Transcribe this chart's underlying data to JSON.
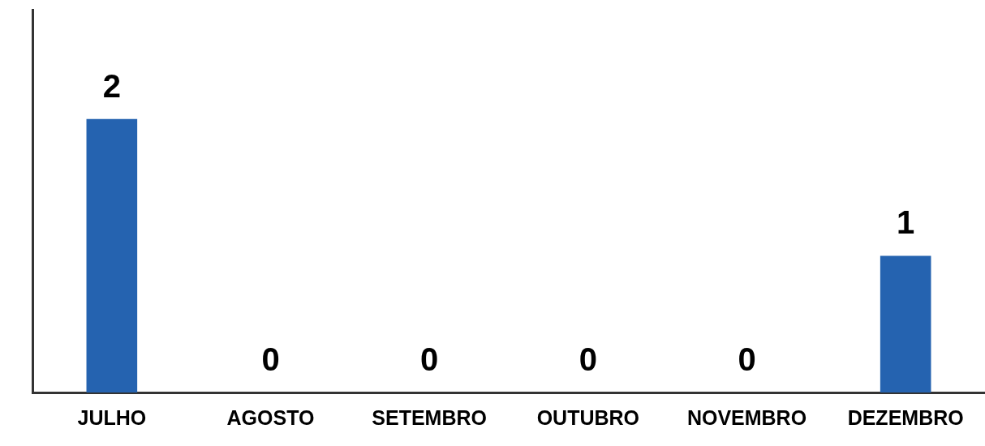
{
  "chart_data": {
    "type": "bar",
    "categories": [
      "JULHO",
      "AGOSTO",
      "SETEMBRO",
      "OUTUBRO",
      "NOVEMBRO",
      "DEZEMBRO"
    ],
    "values": [
      2,
      0,
      0,
      0,
      0,
      1
    ],
    "color": "#2563b0",
    "ylim": [
      0,
      2.8
    ],
    "data_labels": true,
    "grid": false,
    "legend": false,
    "tick_labels": "x"
  }
}
